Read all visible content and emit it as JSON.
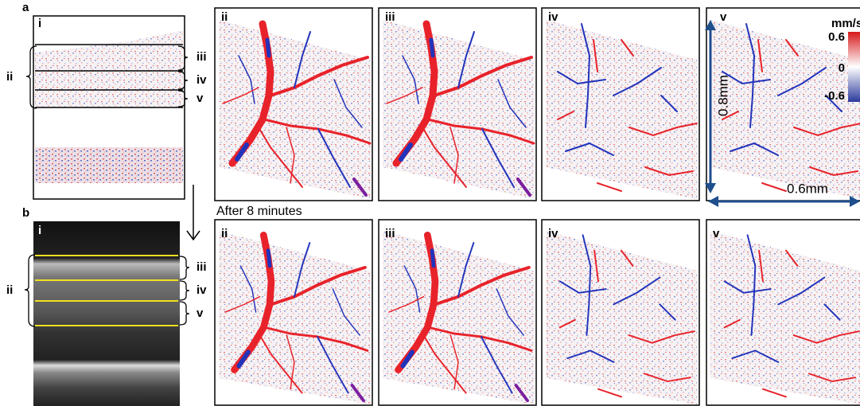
{
  "panel_a": {
    "label": "a",
    "image_label": "i",
    "bracket_label": "ii",
    "layer_labels": [
      "iii",
      "iv",
      "v"
    ]
  },
  "panel_b": {
    "label": "b",
    "image_label": "i",
    "bracket_label": "ii",
    "layer_labels": [
      "iii",
      "iv",
      "v"
    ]
  },
  "top_row": {
    "panels": [
      "ii",
      "iii",
      "iv",
      "v"
    ]
  },
  "bottom_row": {
    "caption": "After 8 minutes",
    "panels": [
      "ii",
      "iii",
      "iv",
      "v"
    ]
  },
  "colorbar": {
    "unit": "mm/s",
    "ticks": [
      "0.6",
      "0",
      "-0.6"
    ]
  },
  "scale_bars": {
    "vertical": "0.8mm",
    "horizontal": "0.6mm"
  }
}
